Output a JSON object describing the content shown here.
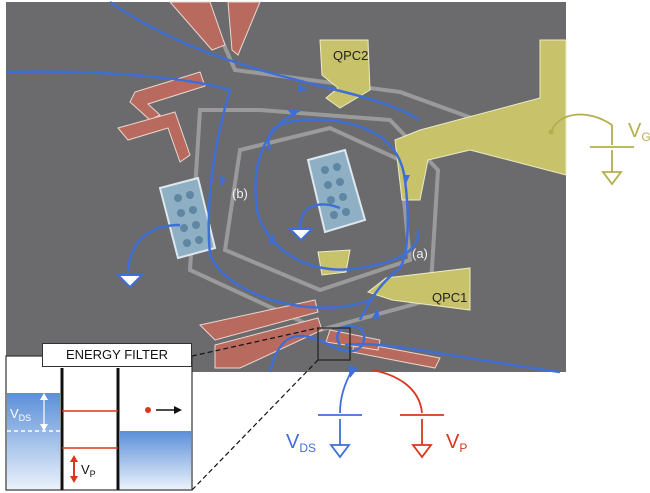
{
  "labels": {
    "qpc2": "QPC2",
    "qpc1": "QPC1",
    "path_a": "(a)",
    "path_b": "(b)",
    "energy_filter": "ENERGY FILTER",
    "vg_main": "V",
    "vg_sub": "G",
    "vds_main": "V",
    "vds_sub": "DS",
    "vp_main": "V",
    "vp_sub": "P",
    "inset_vds_main": "V",
    "inset_vds_sub": "DS",
    "inset_vp_main": "V",
    "inset_vp_sub": "P"
  },
  "colors": {
    "background": "#ffffff",
    "substrate": "#6e6e70",
    "edge_channel": "#3f6fd6",
    "gate_yellow": "#c8c36a",
    "gate_red": "#b96a5e",
    "dot_blue": "#8fb0c4",
    "vds_blue": "#3f6fd6",
    "vp_red": "#d9361f",
    "vg_yellow": "#b5ad4e"
  }
}
